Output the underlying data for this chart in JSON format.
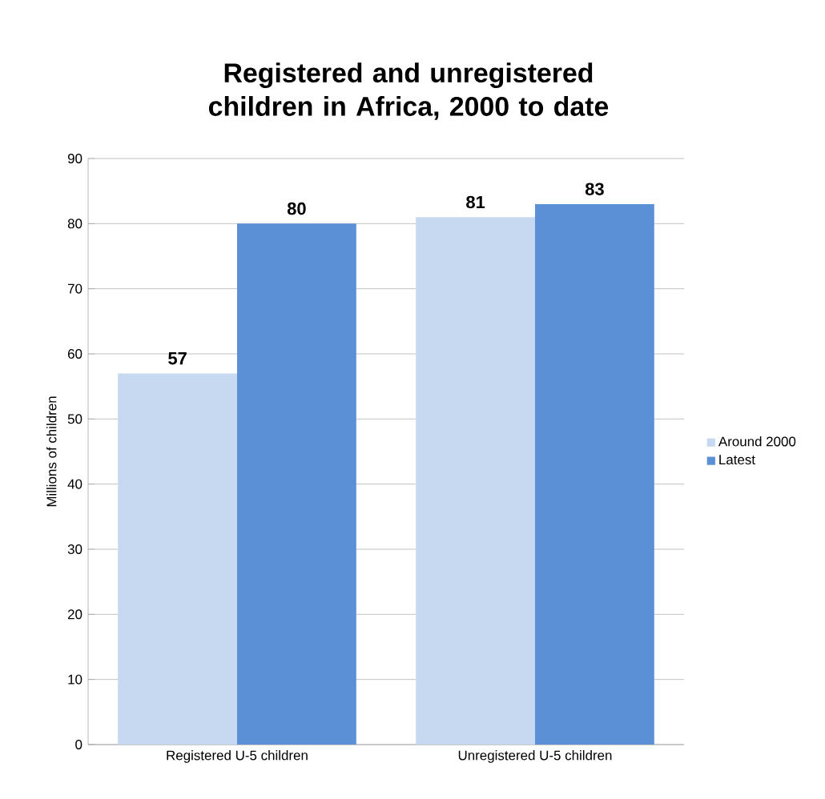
{
  "chart_data": {
    "type": "bar",
    "title": "Registered and unregistered children in Africa, 2000 to date",
    "ylabel": "Millions of children",
    "categories": [
      "Registered U-5 children",
      "Unregistered U-5 children"
    ],
    "series": [
      {
        "name": "Around 2000",
        "color": "#c6d9f1",
        "values": [
          57,
          81
        ]
      },
      {
        "name": "Latest",
        "color": "#5b8fd6",
        "values": [
          80,
          83
        ]
      }
    ],
    "ylim": [
      0,
      90
    ],
    "yticks": [
      0,
      10,
      20,
      30,
      40,
      50,
      60,
      70,
      80,
      90
    ],
    "grid": "y",
    "legend": "right",
    "data_labels": true
  }
}
